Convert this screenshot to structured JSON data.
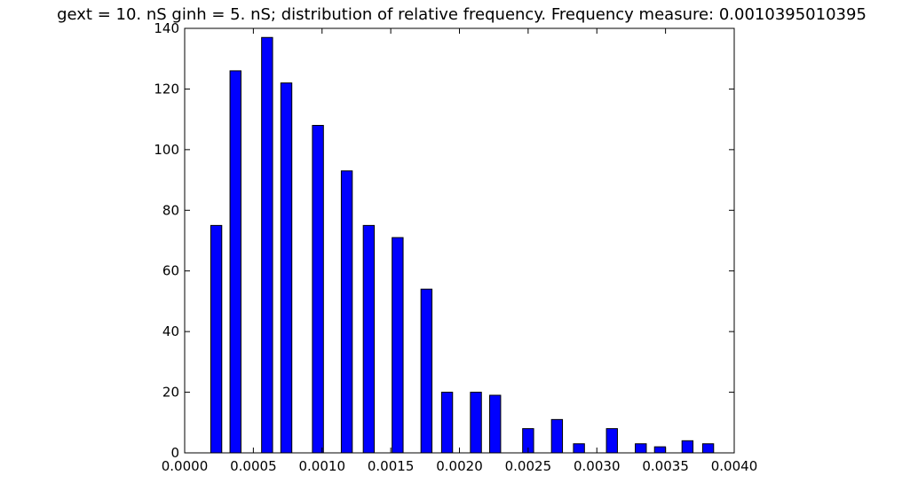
{
  "chart_data": {
    "type": "bar",
    "title": "gext = 10. nS ginh = 5. nS; distribution of relative frequency. Frequency measure: 0.0010395010395",
    "xlabel": "",
    "ylabel": "",
    "xlim": [
      0.0,
      0.004
    ],
    "ylim": [
      0,
      140
    ],
    "grid": false,
    "bar_color": "#0000ff",
    "bar_edge_color": "#000000",
    "x_ticks": [
      0.0,
      0.0005,
      0.001,
      0.0015,
      0.002,
      0.0025,
      0.003,
      0.0035,
      0.004
    ],
    "x_tick_labels": [
      "0.0000",
      "0.0005",
      "0.0010",
      "0.0015",
      "0.0020",
      "0.0025",
      "0.0030",
      "0.0035",
      "0.0040"
    ],
    "y_ticks": [
      0,
      20,
      40,
      60,
      80,
      100,
      120,
      140
    ],
    "y_tick_labels": [
      "0",
      "20",
      "40",
      "60",
      "80",
      "100",
      "120",
      "140"
    ],
    "bar_width": 8e-05,
    "x": [
      0.00023,
      0.00037,
      0.0006,
      0.00074,
      0.00097,
      0.00118,
      0.00134,
      0.00155,
      0.00176,
      0.00191,
      0.00212,
      0.00226,
      0.0025,
      0.00271,
      0.00287,
      0.00311,
      0.00332,
      0.00346,
      0.00366,
      0.00381
    ],
    "values": [
      75,
      126,
      137,
      122,
      108,
      93,
      75,
      71,
      54,
      20,
      20,
      19,
      8,
      11,
      3,
      8,
      3,
      2,
      4,
      3
    ]
  }
}
